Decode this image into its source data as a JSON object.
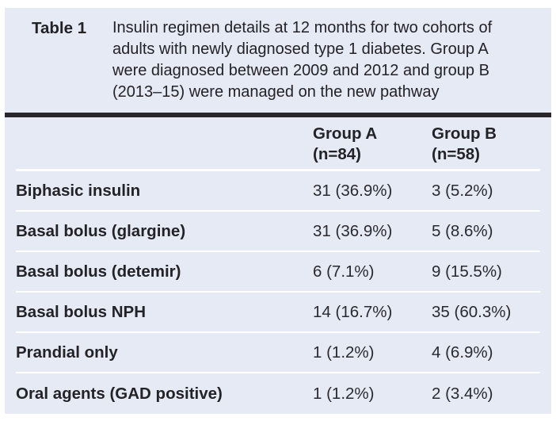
{
  "table": {
    "label": "Table 1",
    "caption": "Insulin regimen details at 12 months for two cohorts of\nadults with newly diagnosed type 1 diabetes. Group A\nwere diagnosed between 2009 and 2012 and group B\n(2013–15) were managed on the new pathway",
    "columns": {
      "group_a": "Group A\n(n=84)",
      "group_b": "Group B\n(n=58)"
    },
    "rows": [
      {
        "label": "Biphasic insulin",
        "group_a": "31 (36.9%)",
        "group_b": "3 (5.2%)"
      },
      {
        "label": "Basal bolus (glargine)",
        "group_a": "31 (36.9%)",
        "group_b": "5 (8.6%)"
      },
      {
        "label": "Basal bolus (detemir)",
        "group_a": "6 (7.1%)",
        "group_b": "9 (15.5%)"
      },
      {
        "label": "Basal bolus NPH",
        "group_a": "14 (16.7%)",
        "group_b": "35 (60.3%)"
      },
      {
        "label": "Prandial only",
        "group_a": "1 (1.2%)",
        "group_b": "4 (6.9%)"
      },
      {
        "label": "Oral agents (GAD positive)",
        "group_a": "1 (1.2%)",
        "group_b": "2 (3.4%)"
      }
    ]
  },
  "colors": {
    "page_background": "#ffffff",
    "panel_background": "#e6eaf5",
    "heavy_rule": "#28252b",
    "text": "#232227",
    "row_separator": "#ffffff"
  }
}
